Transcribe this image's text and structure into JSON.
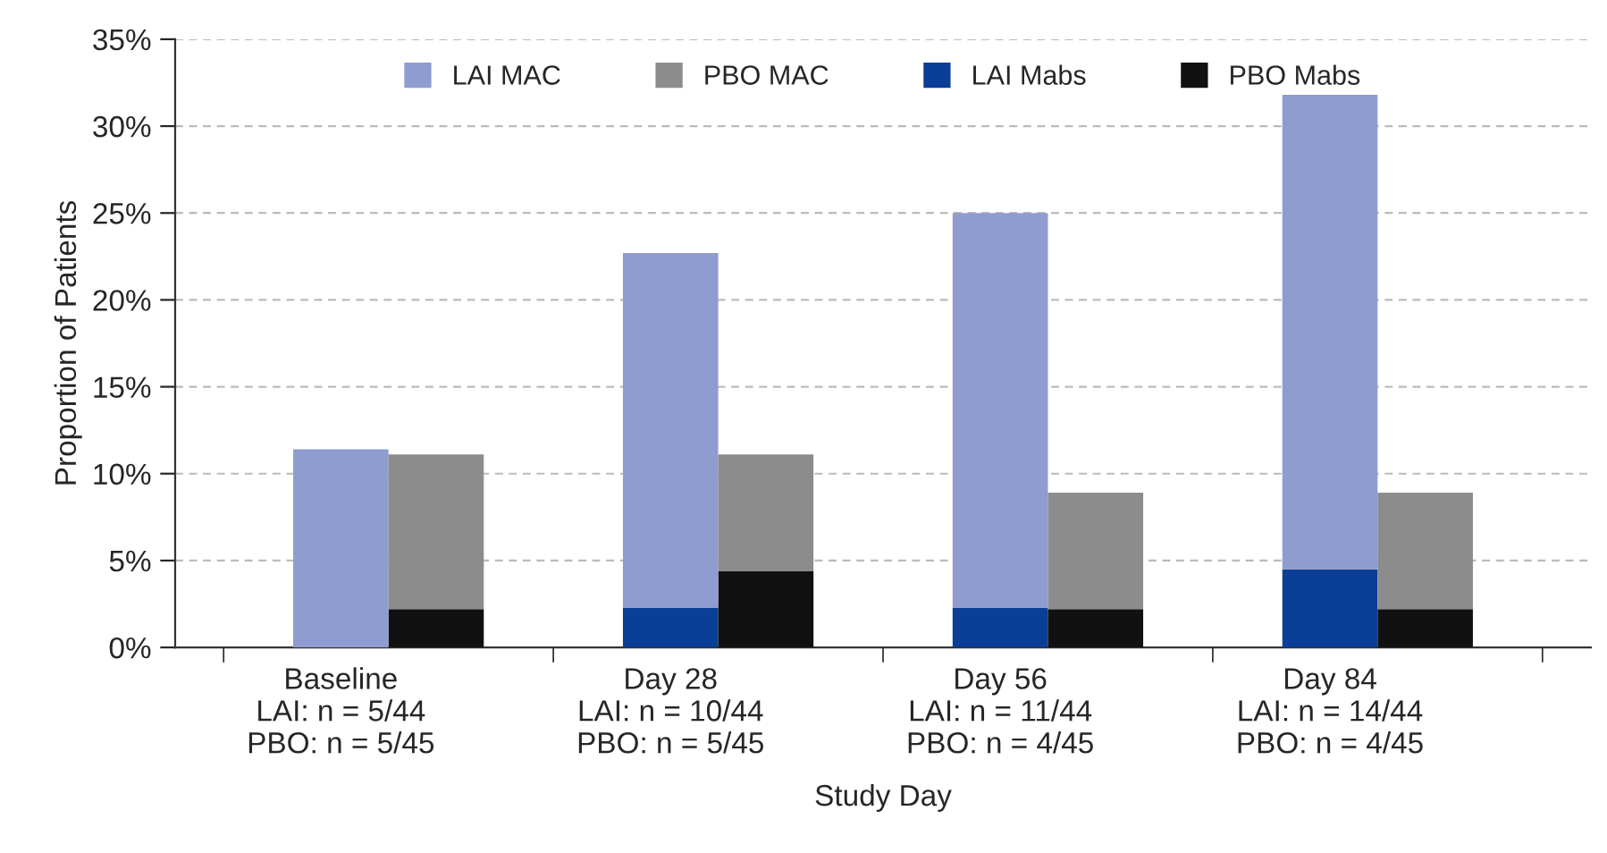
{
  "chart_data": {
    "type": "bar",
    "stacked": true,
    "xlabel": "Study Day",
    "ylabel": "Proportion of Patients",
    "categories": [
      "Baseline\nLAI: n = 5/44\nPBO: n = 5/45",
      null,
      "Day 28\nLAI: n = 10/44\nPBO: n = 5/45",
      null,
      "Day 56\nLAI: n = 11/44\nPBO: n = 4/45",
      null,
      "Day 84\nLAI: n = 14/44\nPBO: n = 4/45",
      null
    ],
    "series": [
      {
        "name": "LAI Mabs",
        "color": "#0a3e97",
        "values": [
          0,
          null,
          2.3,
          null,
          2.3,
          null,
          4.5,
          null
        ]
      },
      {
        "name": "PBO Mabs",
        "color": "#111111",
        "values": [
          null,
          2.2,
          null,
          4.4,
          null,
          2.2,
          null,
          2.2
        ]
      },
      {
        "name": "LAI MAC",
        "color": "#8f9cd0",
        "values": [
          11.4,
          null,
          20.4,
          null,
          22.7,
          null,
          27.3,
          null
        ]
      },
      {
        "name": "PBO MAC",
        "color": "#8c8c8c",
        "values": [
          null,
          8.9,
          null,
          6.7,
          null,
          6.7,
          null,
          6.7
        ]
      }
    ],
    "ylim": [
      0,
      35
    ],
    "yticks": [
      {
        "value": 0,
        "label": "0%"
      },
      {
        "value": 5,
        "label": "5%"
      },
      {
        "value": 10,
        "label": "10%"
      },
      {
        "value": 15,
        "label": "15%"
      },
      {
        "value": 20,
        "label": "20%"
      },
      {
        "value": 25,
        "label": "25%"
      },
      {
        "value": 30,
        "label": "30%"
      },
      {
        "value": 35,
        "label": "35%"
      }
    ],
    "grid": "y",
    "legend": "top"
  }
}
